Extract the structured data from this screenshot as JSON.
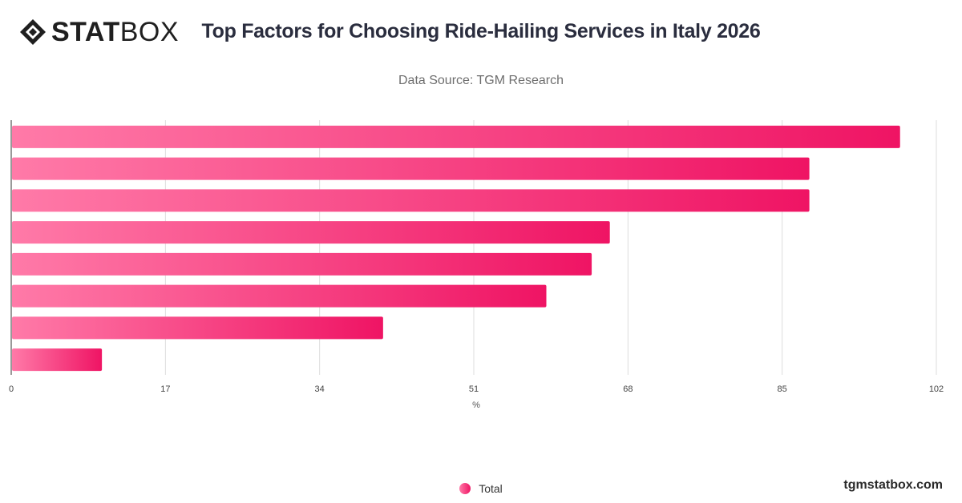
{
  "brand": {
    "logo_bold": "STAT",
    "logo_light": "BOX",
    "credit": "tgmstatbox.com"
  },
  "header": {
    "title": "Top Factors for Choosing Ride-Hailing Services in Italy 2026",
    "subtitle": "Data Source: TGM Research"
  },
  "legend": {
    "label": "Total"
  },
  "colors": {
    "bar_start": "#ff7aa8",
    "bar_end": "#ef1464",
    "grid": "#dddddd",
    "axis": "#333333"
  },
  "chart_data": {
    "type": "bar",
    "orientation": "horizontal",
    "categories": [
      "",
      "",
      "",
      "",
      "",
      "",
      "",
      ""
    ],
    "series": [
      {
        "name": "Total",
        "values": [
          98,
          88,
          88,
          66,
          64,
          59,
          41,
          10
        ]
      }
    ],
    "xlabel": "%",
    "xlim": [
      0,
      102
    ],
    "xticks": [
      0,
      17,
      34,
      51,
      68,
      85,
      102
    ],
    "grid": true,
    "legend_position": "bottom"
  }
}
